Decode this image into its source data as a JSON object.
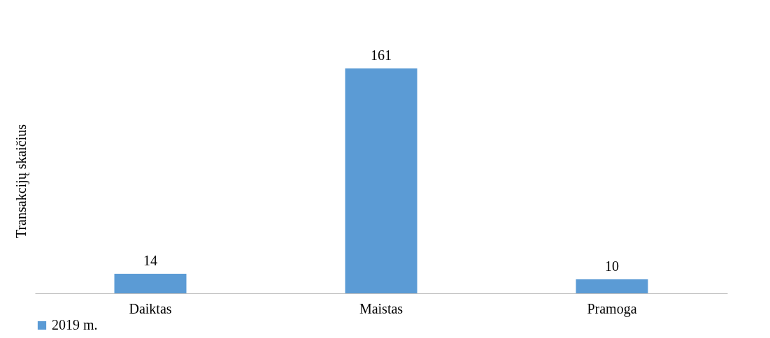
{
  "chart_data": {
    "type": "bar",
    "ylabel": "Transakcijų skaičius",
    "categories": [
      "Daiktas",
      "Maistas",
      "Pramoga"
    ],
    "series": [
      {
        "name": "2019 m.",
        "color": "#5b9bd5",
        "values": [
          14,
          161,
          10
        ]
      }
    ],
    "data_labels": true,
    "legend": "bottom",
    "grid": false
  }
}
